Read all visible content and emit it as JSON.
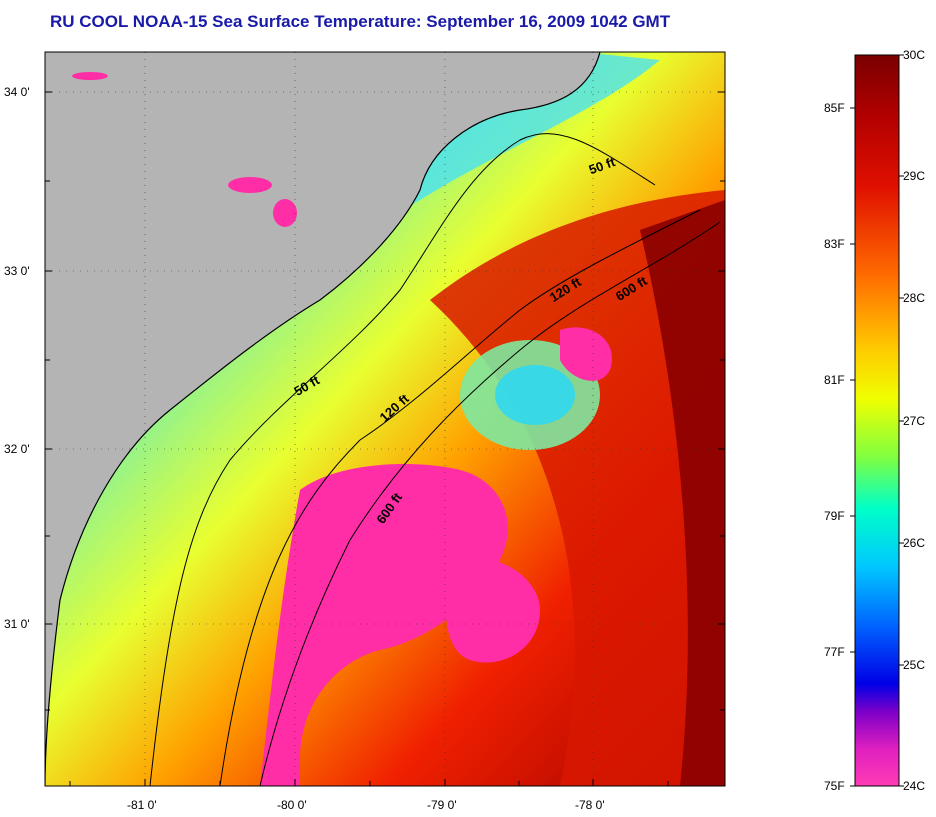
{
  "title": "RU COOL  NOAA-15  Sea Surface Temperature:  September 16, 2009 1042 GMT",
  "map": {
    "lat_labels": [
      "34 0'",
      "33 0'",
      "32 0'",
      "31 0'"
    ],
    "lon_labels": [
      "-81 0'",
      "-80 0'",
      "-79 0'",
      "-78 0'"
    ],
    "contour_labels": [
      "50 ft",
      "120 ft",
      "600 ft",
      "50 ft",
      "120 ft",
      "600 ft"
    ],
    "colors": {
      "land": "#b4b4b4",
      "cloud": "#ff2ea6",
      "coast": "#000000"
    }
  },
  "colorbar": {
    "celsius_labels": [
      "30C",
      "29C",
      "28C",
      "27C",
      "26C",
      "25C",
      "24C"
    ],
    "fahrenheit_labels": [
      "85F",
      "83F",
      "81F",
      "79F",
      "77F",
      "75F"
    ],
    "colors": [
      "#7a0000",
      "#c80000",
      "#ff2a00",
      "#ff8c00",
      "#ffe600",
      "#b4ff3c",
      "#00e6e6",
      "#0096ff",
      "#0000ff",
      "#a000c8",
      "#ff2ea6"
    ]
  }
}
